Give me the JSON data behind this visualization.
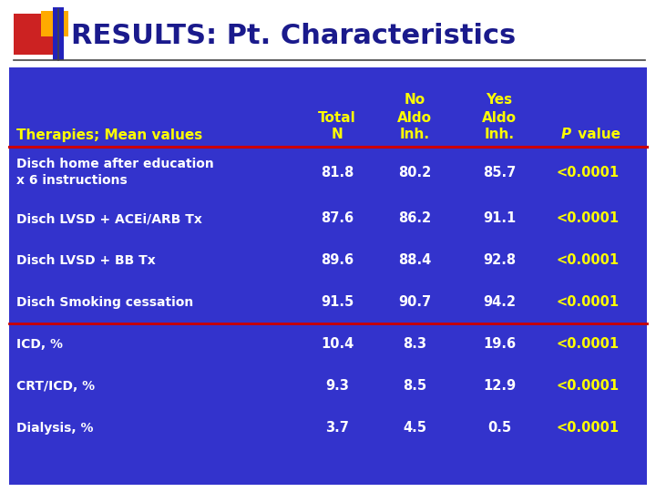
{
  "title": "RESULTS: Pt. Characteristics",
  "title_color": "#1a1a8c",
  "title_fontsize": 22,
  "table_bg": "#3333cc",
  "header_text_color": "#ffff00",
  "row_text_color": "#ffffff",
  "p_value_color": "#ffff00",
  "divider_color": "#cc0000",
  "row_header": "Therapies; Mean values",
  "rows": [
    [
      "Disch home after education\nx 6 instructions",
      "81.8",
      "80.2",
      "85.7",
      "<0.0001"
    ],
    [
      "Disch LVSD + ACEi/ARB Tx",
      "87.6",
      "86.2",
      "91.1",
      "<0.0001"
    ],
    [
      "Disch LVSD + BB Tx",
      "89.6",
      "88.4",
      "92.8",
      "<0.0001"
    ],
    [
      "Disch Smoking cessation",
      "91.5",
      "90.7",
      "94.2",
      "<0.0001"
    ],
    [
      "ICD, %",
      "10.4",
      "8.3",
      "19.6",
      "<0.0001"
    ],
    [
      "CRT/ICD, %",
      "9.3",
      "8.5",
      "12.9",
      "<0.0001"
    ],
    [
      "Dialysis, %",
      "3.7",
      "4.5",
      "0.5",
      "<0.0001"
    ]
  ],
  "divider_after_rows": [
    4
  ],
  "bg_color": "#ffffff",
  "fig_width": 7.2,
  "fig_height": 5.4,
  "dpi": 100
}
